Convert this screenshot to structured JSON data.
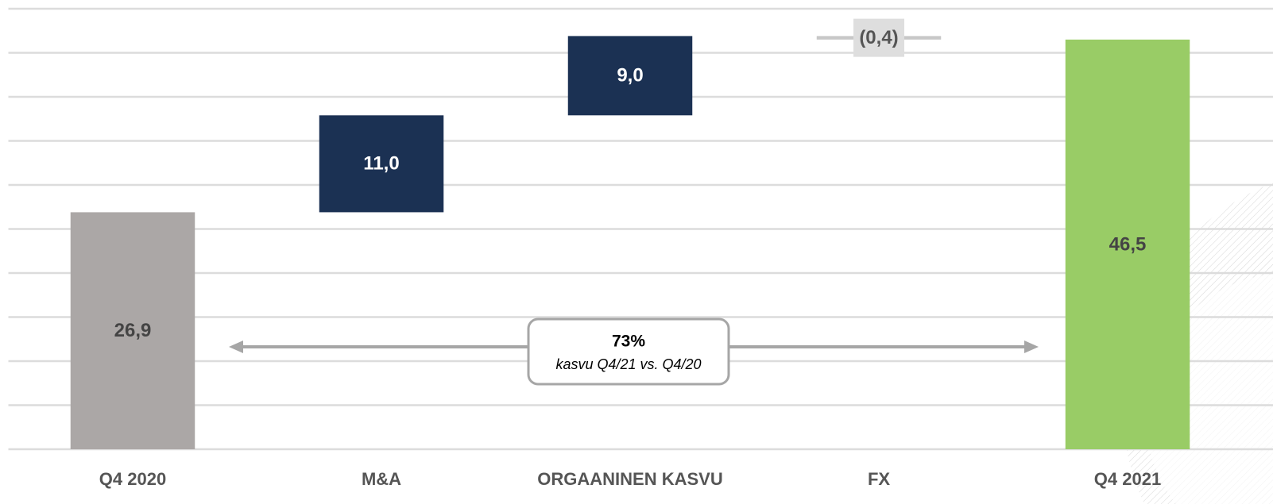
{
  "chart_data": {
    "type": "waterfall",
    "categories": [
      "Q4 2020",
      "M&A",
      "ORGAANINEN KASVU",
      "FX",
      "Q4 2021"
    ],
    "values": [
      26.9,
      11.0,
      9.0,
      -0.4,
      46.5
    ],
    "value_labels": [
      "26,9",
      "11,0",
      "9,0",
      "(0,4)",
      "46,5"
    ],
    "totals": [
      true,
      false,
      false,
      false,
      true
    ],
    "colors": [
      "#aba7a6",
      "#1b3153",
      "#1b3153",
      "#c8c8c8",
      "#99cc66"
    ],
    "label_colors": [
      "#444444",
      "#ffffff",
      "#ffffff",
      "#555555",
      "#444444"
    ],
    "ylim": [
      0,
      50
    ],
    "yticks": [
      0,
      5,
      10,
      15,
      20,
      25,
      30,
      35,
      40,
      45,
      50
    ],
    "grid": true,
    "annotation": {
      "value": "73%",
      "text": "kasvu Q4/21 vs. Q4/20"
    }
  }
}
